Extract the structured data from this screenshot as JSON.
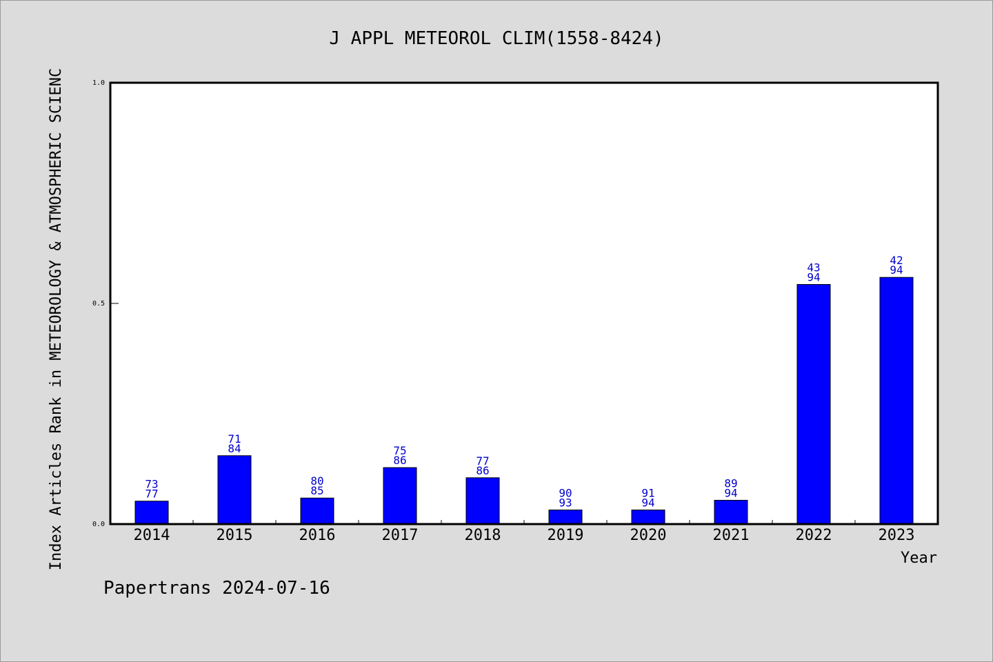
{
  "chart_data": {
    "type": "bar",
    "title": "J APPL METEOROL CLIM(1558-8424)",
    "xlabel": "Year",
    "ylabel": "Index Articles Rank in METEOROLOGY & ATMOSPHERIC SCIENC",
    "ylim": [
      0,
      1.0
    ],
    "yticks": [
      {
        "value": 0.0,
        "label": "0.0"
      },
      {
        "value": 0.5,
        "label": "0.5"
      },
      {
        "value": 1.0,
        "label": "1.0"
      }
    ],
    "grid": false,
    "bar_color": "#0000ff",
    "label_color": "#0000cc",
    "categories": [
      "2014",
      "2015",
      "2016",
      "2017",
      "2018",
      "2019",
      "2020",
      "2021",
      "2022",
      "2023"
    ],
    "values": [
      0.052,
      0.155,
      0.059,
      0.128,
      0.105,
      0.032,
      0.032,
      0.054,
      0.543,
      0.559
    ],
    "rank_labels": [
      "73",
      "71",
      "80",
      "75",
      "77",
      "90",
      "91",
      "89",
      "43",
      "42"
    ],
    "total_labels": [
      "77",
      "84",
      "85",
      "86",
      "86",
      "93",
      "94",
      "94",
      "94",
      "94"
    ]
  },
  "footer": "Papertrans 2024-07-16"
}
